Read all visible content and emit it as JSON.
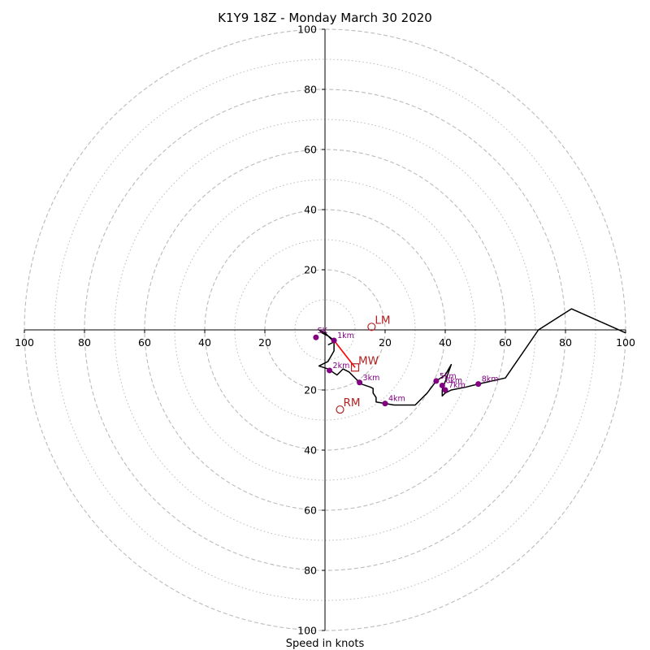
{
  "chart_data": {
    "type": "line",
    "title": "K1Y9 18Z - Monday March 30 2020",
    "xlabel": "Speed in knots",
    "range": 100,
    "rings_major": [
      20,
      40,
      60,
      80,
      100
    ],
    "rings_minor": [
      10,
      30,
      50,
      70,
      90
    ],
    "axis_ticks": [
      {
        "value": 100,
        "label": "100"
      },
      {
        "value": 80,
        "label": "80"
      },
      {
        "value": 60,
        "label": "60"
      },
      {
        "value": 40,
        "label": "40"
      },
      {
        "value": 20,
        "label": "20"
      }
    ],
    "hodograph": {
      "color": "#000000",
      "points": [
        [
          1,
          -5
        ],
        [
          3,
          -4
        ],
        [
          2,
          -3
        ],
        [
          0,
          -1
        ],
        [
          -2,
          0
        ],
        [
          -1,
          -1
        ],
        [
          1,
          -2
        ],
        [
          3,
          -3.5
        ],
        [
          3,
          -7
        ],
        [
          1,
          -10.5
        ],
        [
          0,
          -11
        ],
        [
          -2,
          -12
        ],
        [
          1,
          -13
        ],
        [
          4,
          -15
        ],
        [
          6,
          -13
        ],
        [
          8,
          -14
        ],
        [
          12,
          -18
        ],
        [
          15,
          -19
        ],
        [
          16,
          -19.5
        ],
        [
          16,
          -21
        ],
        [
          17,
          -22.5
        ],
        [
          17,
          -24
        ],
        [
          20,
          -24.5
        ],
        [
          23,
          -25
        ],
        [
          30,
          -25
        ],
        [
          34,
          -21
        ],
        [
          37,
          -17
        ],
        [
          40,
          -15
        ],
        [
          42,
          -11.5
        ],
        [
          39,
          -20
        ],
        [
          39,
          -22
        ],
        [
          40,
          -21
        ],
        [
          42,
          -20
        ],
        [
          47,
          -19
        ],
        [
          51,
          -18
        ],
        [
          60,
          -16
        ],
        [
          71,
          0
        ],
        [
          82,
          7
        ],
        [
          100,
          -1
        ]
      ]
    },
    "height_markers": [
      {
        "label": "",
        "u": -3,
        "v": -2.5
      },
      {
        "label": "1km",
        "u": 3,
        "v": -3.5
      },
      {
        "label": "2km",
        "u": 1.5,
        "v": -13.5
      },
      {
        "label": "3km",
        "u": 11.5,
        "v": -17.5
      },
      {
        "label": "4km",
        "u": 20,
        "v": -24.5
      },
      {
        "label": "5km",
        "u": 37,
        "v": -17
      },
      {
        "label": "6km",
        "u": 39,
        "v": -18.5
      },
      {
        "label": "7km",
        "u": 40,
        "v": -20
      },
      {
        "label": "8km",
        "u": 51,
        "v": -18
      }
    ],
    "surface_label": {
      "label": "SK",
      "u": -2,
      "v": 0
    },
    "shear_vector": {
      "from": [
        3,
        -3.5
      ],
      "to": [
        10,
        -12.5
      ],
      "color": "#ff0000"
    },
    "motion_markers": [
      {
        "label": "LM",
        "u": 15.5,
        "v": 1,
        "shape": "circle"
      },
      {
        "label": "MW",
        "u": 10,
        "v": -12.5,
        "shape": "square"
      },
      {
        "label": "RM",
        "u": 5,
        "v": -26.5,
        "shape": "circle"
      }
    ],
    "colors": {
      "line": "#000000",
      "marker": "#800080",
      "marker_text": "#800080",
      "motion": "#b22222",
      "shear": "#ff0000",
      "ring": "#bbbbbb"
    },
    "grid": true
  }
}
